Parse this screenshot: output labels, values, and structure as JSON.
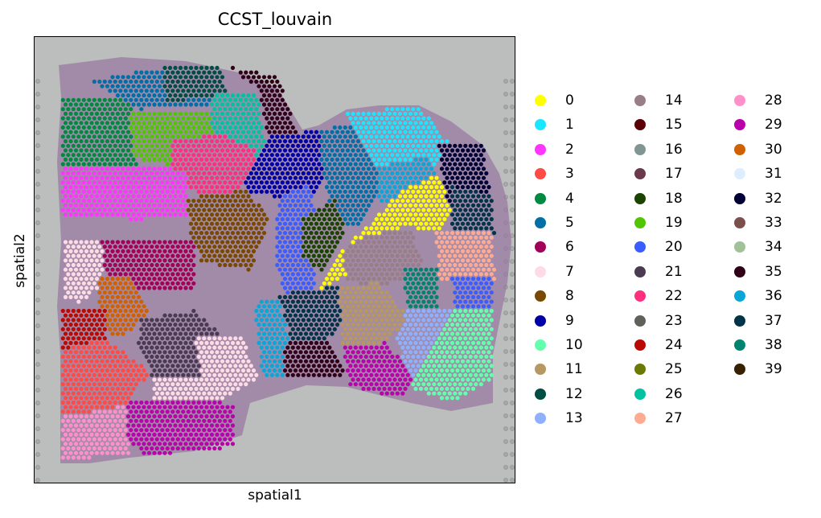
{
  "chart_data": {
    "type": "scatter",
    "title": "CCST_louvain",
    "xlabel": "spatial1",
    "ylabel": "spatial2",
    "grid": false,
    "ticks": false,
    "legend_placement": "right",
    "legend_columns": 3,
    "background": "tissue-image",
    "categories": [
      "0",
      "1",
      "2",
      "3",
      "4",
      "5",
      "6",
      "7",
      "8",
      "9",
      "10",
      "11",
      "12",
      "13",
      "14",
      "15",
      "16",
      "17",
      "18",
      "19",
      "20",
      "21",
      "22",
      "23",
      "24",
      "25",
      "26",
      "27",
      "28",
      "29",
      "30",
      "31",
      "32",
      "33",
      "34",
      "35",
      "36",
      "37",
      "38",
      "39"
    ],
    "colors": [
      "#ffff00",
      "#1ce6ff",
      "#ff34ff",
      "#ff4a46",
      "#008941",
      "#006fa6",
      "#a30059",
      "#ffdbe5",
      "#7a4900",
      "#0000a6",
      "#63ffac",
      "#b79762",
      "#004d43",
      "#8fb0ff",
      "#997d87",
      "#5a0007",
      "#809693",
      "#6a3a4c",
      "#1b4400",
      "#4fc601",
      "#3b5dff",
      "#4a3b53",
      "#ff2f80",
      "#61615a",
      "#ba0900",
      "#6b7900",
      "#00c2a0",
      "#ffaa92",
      "#ff90c9",
      "#b903aa",
      "#d16100",
      "#ddefff",
      "#000035",
      "#7b4f4b",
      "#a1c299",
      "#300018",
      "#0aa6d8",
      "#013349",
      "#00846f",
      "#372101"
    ],
    "regions": [
      {
        "cluster": "4",
        "poly": [
          [
            75,
            120
          ],
          [
            165,
            118
          ],
          [
            170,
            205
          ],
          [
            75,
            205
          ]
        ]
      },
      {
        "cluster": "19",
        "poly": [
          [
            160,
            140
          ],
          [
            260,
            135
          ],
          [
            265,
            185
          ],
          [
            215,
            205
          ],
          [
            165,
            195
          ]
        ]
      },
      {
        "cluster": "5",
        "poly": [
          [
            110,
            100
          ],
          [
            190,
            85
          ],
          [
            260,
            85
          ],
          [
            270,
            130
          ],
          [
            170,
            135
          ]
        ]
      },
      {
        "cluster": "12",
        "poly": [
          [
            200,
            80
          ],
          [
            275,
            82
          ],
          [
            280,
            120
          ],
          [
            205,
            125
          ]
        ]
      },
      {
        "cluster": "26",
        "poly": [
          [
            260,
            118
          ],
          [
            320,
            115
          ],
          [
            330,
            190
          ],
          [
            280,
            200
          ],
          [
            262,
            160
          ]
        ]
      },
      {
        "cluster": "35",
        "poly": [
          [
            280,
            80
          ],
          [
            345,
            95
          ],
          [
            370,
            165
          ],
          [
            335,
            185
          ],
          [
            320,
            110
          ]
        ]
      },
      {
        "cluster": "22",
        "poly": [
          [
            210,
            175
          ],
          [
            270,
            165
          ],
          [
            320,
            185
          ],
          [
            300,
            235
          ],
          [
            250,
            245
          ],
          [
            215,
            215
          ]
        ]
      },
      {
        "cluster": "2",
        "poly": [
          [
            75,
            205
          ],
          [
            170,
            205
          ],
          [
            230,
            210
          ],
          [
            235,
            268
          ],
          [
            170,
            272
          ],
          [
            75,
            268
          ]
        ]
      },
      {
        "cluster": "9",
        "poly": [
          [
            330,
            170
          ],
          [
            395,
            160
          ],
          [
            405,
            215
          ],
          [
            385,
            245
          ],
          [
            345,
            245
          ],
          [
            300,
            235
          ]
        ]
      },
      {
        "cluster": "8",
        "poly": [
          [
            230,
            245
          ],
          [
            305,
            235
          ],
          [
            335,
            270
          ],
          [
            310,
            335
          ],
          [
            250,
            325
          ],
          [
            235,
            285
          ]
        ]
      },
      {
        "cluster": "20",
        "poly": [
          [
            345,
            245
          ],
          [
            385,
            228
          ],
          [
            395,
            300
          ],
          [
            390,
            365
          ],
          [
            355,
            370
          ],
          [
            340,
            320
          ]
        ]
      },
      {
        "cluster": "5",
        "poly": [
          [
            395,
            160
          ],
          [
            470,
            150
          ],
          [
            475,
            225
          ],
          [
            445,
            280
          ],
          [
            415,
            275
          ],
          [
            400,
            215
          ]
        ]
      },
      {
        "cluster": "1",
        "poly": [
          [
            430,
            140
          ],
          [
            520,
            130
          ],
          [
            560,
            180
          ],
          [
            520,
            230
          ],
          [
            480,
            230
          ],
          [
            450,
            180
          ]
        ]
      },
      {
        "cluster": "36",
        "poly": [
          [
            470,
            205
          ],
          [
            530,
            195
          ],
          [
            545,
            225
          ],
          [
            505,
            270
          ],
          [
            470,
            250
          ]
        ]
      },
      {
        "cluster": "0",
        "poly": [
          [
            425,
            310
          ],
          [
            500,
            235
          ],
          [
            545,
            215
          ],
          [
            565,
            260
          ],
          [
            545,
            290
          ],
          [
            500,
            280
          ],
          [
            455,
            330
          ],
          [
            395,
            360
          ]
        ]
      },
      {
        "cluster": "32",
        "poly": [
          [
            545,
            180
          ],
          [
            600,
            180
          ],
          [
            610,
            250
          ],
          [
            560,
            265
          ],
          [
            550,
            230
          ]
        ]
      },
      {
        "cluster": "37",
        "poly": [
          [
            560,
            230
          ],
          [
            610,
            240
          ],
          [
            615,
            295
          ],
          [
            560,
            290
          ]
        ]
      },
      {
        "cluster": "27",
        "poly": [
          [
            540,
            285
          ],
          [
            610,
            285
          ],
          [
            615,
            350
          ],
          [
            545,
            350
          ]
        ]
      },
      {
        "cluster": "18",
        "poly": [
          [
            375,
            270
          ],
          [
            415,
            245
          ],
          [
            430,
            290
          ],
          [
            400,
            335
          ],
          [
            375,
            320
          ]
        ]
      },
      {
        "cluster": "14",
        "poly": [
          [
            425,
            310
          ],
          [
            460,
            290
          ],
          [
            510,
            285
          ],
          [
            525,
            330
          ],
          [
            480,
            355
          ],
          [
            430,
            350
          ]
        ]
      },
      {
        "cluster": "6",
        "poly": [
          [
            120,
            295
          ],
          [
            240,
            295
          ],
          [
            240,
            360
          ],
          [
            165,
            362
          ],
          [
            120,
            330
          ]
        ]
      },
      {
        "cluster": "7",
        "poly": [
          [
            78,
            295
          ],
          [
            125,
            300
          ],
          [
            130,
            350
          ],
          [
            100,
            375
          ],
          [
            78,
            370
          ]
        ]
      },
      {
        "cluster": "30",
        "poly": [
          [
            120,
            345
          ],
          [
            160,
            340
          ],
          [
            185,
            390
          ],
          [
            150,
            420
          ],
          [
            120,
            405
          ]
        ]
      },
      {
        "cluster": "24",
        "poly": [
          [
            75,
            380
          ],
          [
            130,
            380
          ],
          [
            130,
            440
          ],
          [
            80,
            465
          ],
          [
            75,
            440
          ]
        ]
      },
      {
        "cluster": "3",
        "poly": [
          [
            75,
            435
          ],
          [
            130,
            420
          ],
          [
            185,
            460
          ],
          [
            160,
            500
          ],
          [
            120,
            520
          ],
          [
            75,
            520
          ]
        ]
      },
      {
        "cluster": "28",
        "poly": [
          [
            75,
            515
          ],
          [
            125,
            510
          ],
          [
            160,
            500
          ],
          [
            160,
            565
          ],
          [
            75,
            570
          ]
        ]
      },
      {
        "cluster": "29",
        "poly": [
          [
            155,
            495
          ],
          [
            290,
            500
          ],
          [
            290,
            555
          ],
          [
            180,
            565
          ],
          [
            158,
            545
          ]
        ]
      },
      {
        "cluster": "21",
        "poly": [
          [
            175,
            395
          ],
          [
            240,
            385
          ],
          [
            280,
            420
          ],
          [
            250,
            470
          ],
          [
            190,
            470
          ],
          [
            170,
            430
          ]
        ]
      },
      {
        "cluster": "7",
        "poly": [
          [
            240,
            420
          ],
          [
            300,
            415
          ],
          [
            320,
            470
          ],
          [
            270,
            498
          ],
          [
            190,
            495
          ],
          [
            190,
            470
          ],
          [
            250,
            470
          ]
        ]
      },
      {
        "cluster": "36",
        "poly": [
          [
            315,
            375
          ],
          [
            345,
            372
          ],
          [
            360,
            420
          ],
          [
            350,
            470
          ],
          [
            325,
            470
          ]
        ]
      },
      {
        "cluster": "37",
        "poly": [
          [
            345,
            365
          ],
          [
            420,
            355
          ],
          [
            435,
            395
          ],
          [
            405,
            420
          ],
          [
            360,
            420
          ]
        ]
      },
      {
        "cluster": "35",
        "poly": [
          [
            355,
            420
          ],
          [
            405,
            420
          ],
          [
            430,
            465
          ],
          [
            385,
            470
          ],
          [
            350,
            470
          ]
        ]
      },
      {
        "cluster": "11",
        "poly": [
          [
            420,
            355
          ],
          [
            470,
            350
          ],
          [
            510,
            395
          ],
          [
            470,
            430
          ],
          [
            425,
            430
          ]
        ]
      },
      {
        "cluster": "13",
        "poly": [
          [
            505,
            385
          ],
          [
            575,
            380
          ],
          [
            590,
            450
          ],
          [
            515,
            470
          ],
          [
            490,
            425
          ]
        ]
      },
      {
        "cluster": "10",
        "poly": [
          [
            565,
            385
          ],
          [
            612,
            380
          ],
          [
            612,
            470
          ],
          [
            560,
            500
          ],
          [
            510,
            480
          ]
        ]
      },
      {
        "cluster": "29",
        "poly": [
          [
            425,
            430
          ],
          [
            480,
            425
          ],
          [
            515,
            470
          ],
          [
            495,
            495
          ],
          [
            435,
            480
          ]
        ]
      },
      {
        "cluster": "38",
        "poly": [
          [
            500,
            330
          ],
          [
            545,
            330
          ],
          [
            545,
            380
          ],
          [
            505,
            385
          ]
        ]
      },
      {
        "cluster": "20",
        "poly": [
          [
            560,
            340
          ],
          [
            612,
            340
          ],
          [
            612,
            385
          ],
          [
            565,
            385
          ]
        ]
      }
    ],
    "tissue_outline": [
      [
        72,
        80
      ],
      [
        150,
        70
      ],
      [
        230,
        75
      ],
      [
        300,
        90
      ],
      [
        345,
        110
      ],
      [
        375,
        160
      ],
      [
        395,
        155
      ],
      [
        430,
        135
      ],
      [
        470,
        130
      ],
      [
        520,
        130
      ],
      [
        560,
        150
      ],
      [
        600,
        180
      ],
      [
        620,
        215
      ],
      [
        630,
        250
      ],
      [
        635,
        300
      ],
      [
        630,
        350
      ],
      [
        620,
        400
      ],
      [
        612,
        440
      ],
      [
        612,
        500
      ],
      [
        560,
        510
      ],
      [
        510,
        500
      ],
      [
        430,
        480
      ],
      [
        380,
        478
      ],
      [
        310,
        500
      ],
      [
        300,
        540
      ],
      [
        240,
        560
      ],
      [
        160,
        568
      ],
      [
        110,
        575
      ],
      [
        74,
        575
      ],
      [
        74,
        440
      ],
      [
        70,
        380
      ],
      [
        75,
        300
      ],
      [
        70,
        200
      ],
      [
        75,
        120
      ]
    ]
  }
}
